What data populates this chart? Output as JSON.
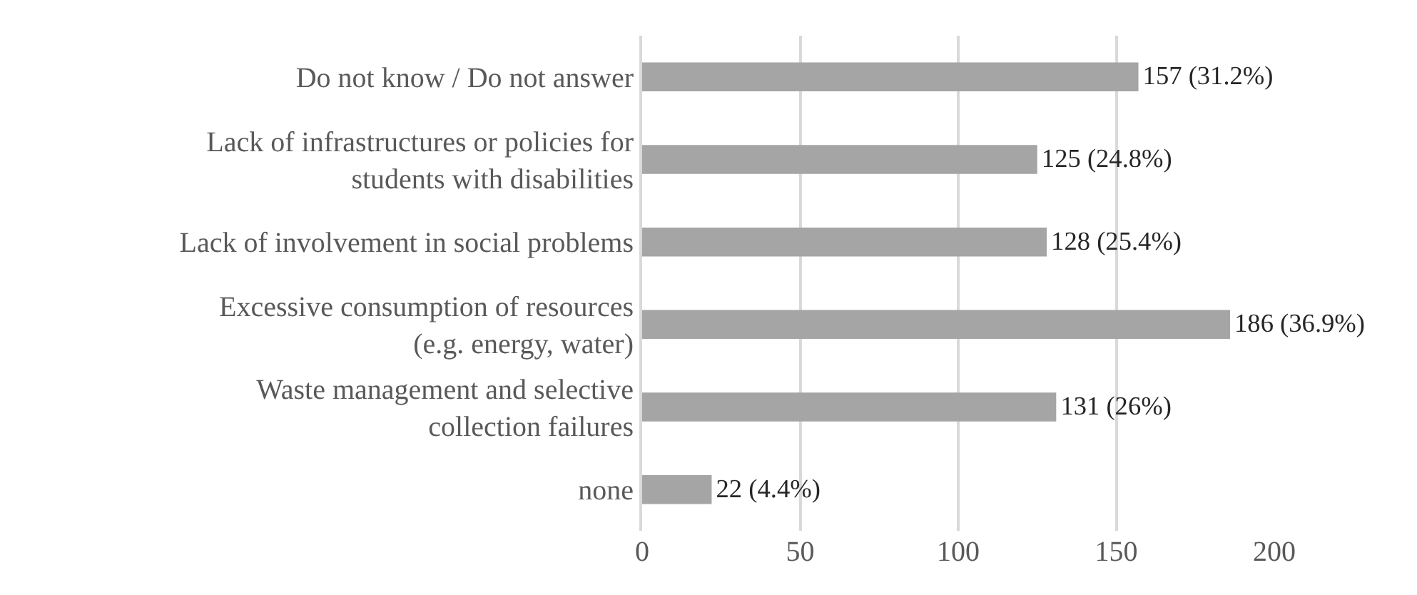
{
  "chart_data": {
    "type": "bar",
    "orientation": "horizontal",
    "categories": [
      "Do not know / Do not answer",
      "Lack of infrastructures or policies for students with disabilities",
      "Lack of involvement in social problems",
      "Excessive consumption of resources (e.g. energy, water)",
      "Waste management and selective collection failures",
      "none"
    ],
    "values": [
      157,
      125,
      128,
      186,
      131,
      22
    ],
    "value_labels": [
      "157 (31.2%)",
      "125 (24.8%)",
      "128 (25.4%)",
      "186 (36.9%)",
      "131 (26%)",
      "22 (4.4%)"
    ],
    "color": "#a5a5a5",
    "xlim": [
      0,
      200
    ],
    "xticks": [
      0,
      50,
      100,
      150,
      200
    ],
    "grid": "x",
    "legend": false
  }
}
